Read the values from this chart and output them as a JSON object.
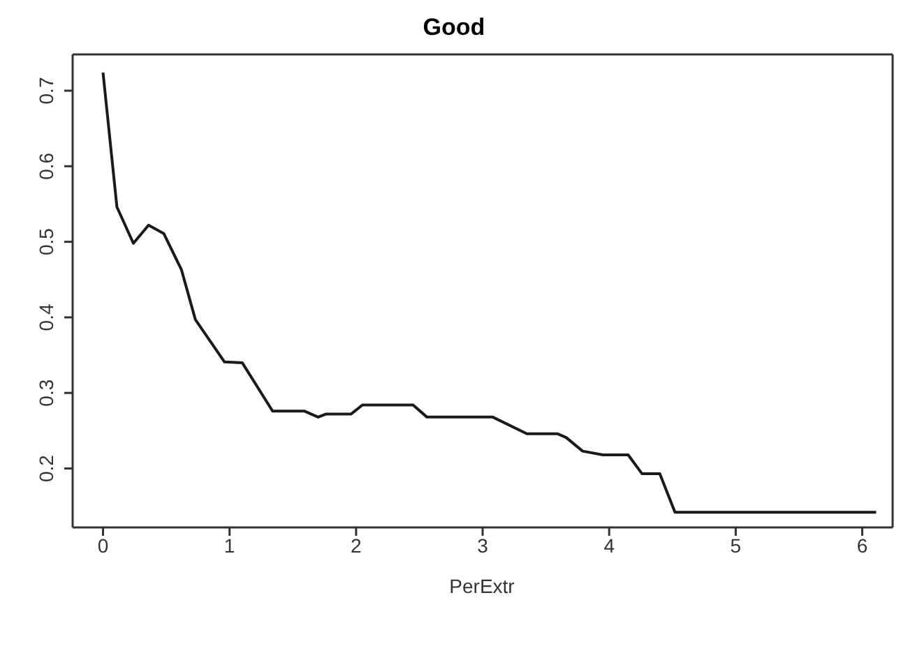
{
  "chart_data": {
    "type": "line",
    "title": "Good",
    "xlabel": "PerExtr",
    "xlim": [
      -0.24,
      6.24
    ],
    "xticks": [
      0,
      1,
      2,
      3,
      4,
      5,
      6
    ],
    "ylim": [
      0.122,
      0.748
    ],
    "yticks": [
      0.2,
      0.3,
      0.4,
      0.5,
      0.6,
      0.7
    ],
    "marker": "none",
    "line_style": "solid",
    "series": [
      {
        "color": "#1a1a1a",
        "x": [
          0,
          0.11,
          0.24,
          0.36,
          0.48,
          0.62,
          0.73,
          0.96,
          1.1,
          1.34,
          1.59,
          1.7,
          1.76,
          1.96,
          2.05,
          2.45,
          2.56,
          3.08,
          3.35,
          3.59,
          3.66,
          3.79,
          3.95,
          4.15,
          4.26,
          4.4,
          4.52,
          6.11
        ],
        "values": [
          0.724,
          0.546,
          0.498,
          0.522,
          0.511,
          0.463,
          0.397,
          0.341,
          0.34,
          0.276,
          0.276,
          0.268,
          0.272,
          0.272,
          0.284,
          0.284,
          0.268,
          0.268,
          0.246,
          0.246,
          0.241,
          0.223,
          0.218,
          0.218,
          0.193,
          0.193,
          0.142,
          0.142
        ]
      }
    ]
  }
}
